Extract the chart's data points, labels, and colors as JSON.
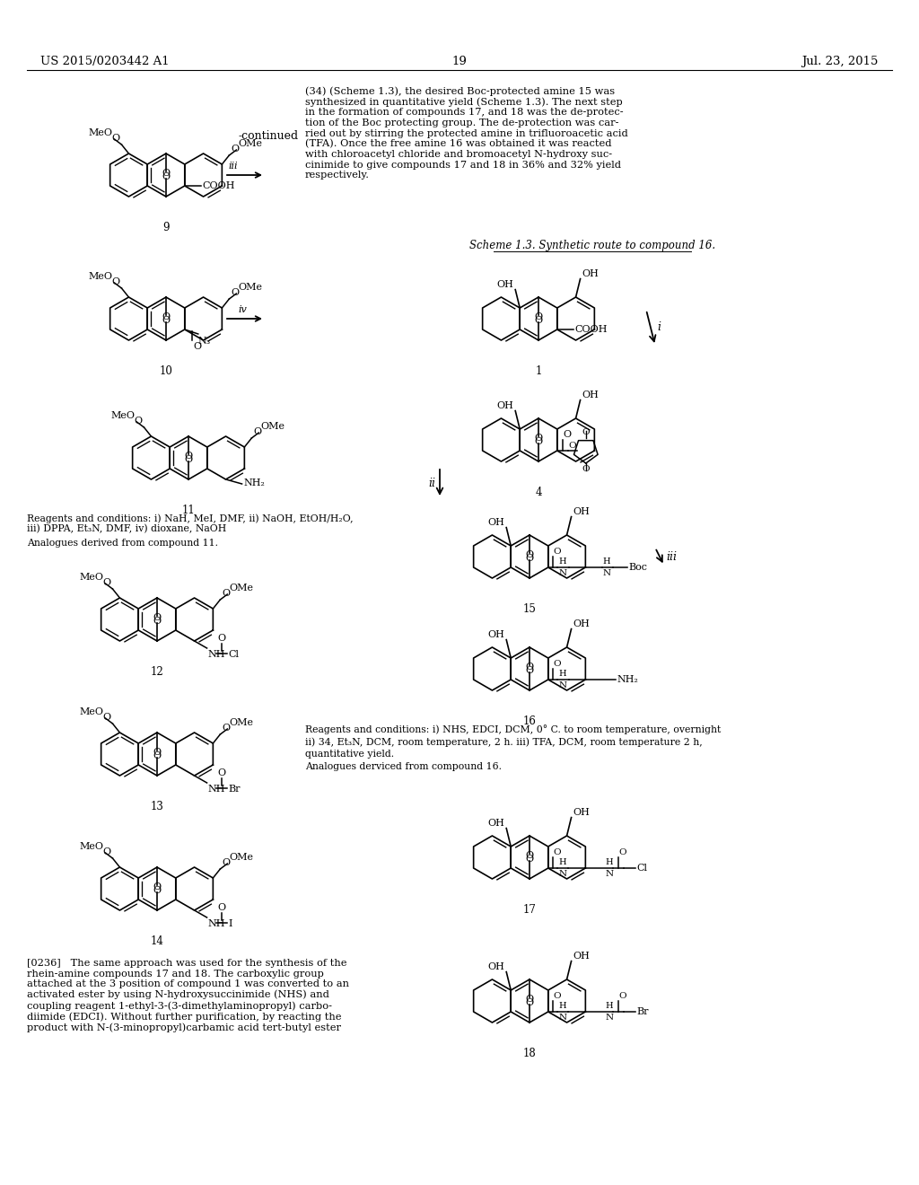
{
  "patent_number": "US 2015/0203442 A1",
  "patent_date": "Jul. 23, 2015",
  "page_number": "19",
  "continued": "-continued",
  "scheme_title": "Scheme 1.3. Synthetic route to compound 16.",
  "reagents_left": "Reagents and conditions: i) NaH, MeI, DMF, ii) NaOH, EtOH/H₂O,\niii) DPPA, Et₃N, DMF, iv) dioxane, NaOH",
  "analogues_left": "Analogues derived from compound 11.",
  "reagents_right_1": "Reagents and conditions: i) NHS, EDCI, DCM, 0° C. to room temperature, overnight",
  "reagents_right_2": "ii) 34, Et₃N, DCM, room temperature, 2 h. iii) TFA, DCM, room temperature 2 h,",
  "reagents_right_3": "quantitative yield.",
  "analogues_right": "Analogues derviced from compound 16.",
  "right_para": "(34) (Scheme 1.3), the desired Boc-protected amine 15 was\nsynthesized in quantitative yield (Scheme 1.3). The next step\nin the formation of compounds 17, and 18 was the de-protec-\ntion of the Boc protecting group. The de-protection was car-\nried out by stirring the protected amine in trifluoroacetic acid\n(TFA). Once the free amine 16 was obtained it was reacted\nwith chloroacetyl chloride and bromoacetyl N-hydroxy suc-\ncinimide to give compounds 17 and 18 in 36% and 32% yield\nrespectively.",
  "left_para": "[0236]   The same approach was used for the synthesis of the\nrhein-amine compounds 17 and 18. The carboxylic group\nattached at the 3 position of compound 1 was converted to an\nactivated ester by using N-hydroxysuccinimide (NHS) and\ncoupling reagent 1-ethyl-3-(3-dimethylaminopropyl) carbo-\ndiimide (EDCI). Without further purification, by reacting the\nproduct with N-(3-minopropyl)carbamic acid tert-butyl ester"
}
